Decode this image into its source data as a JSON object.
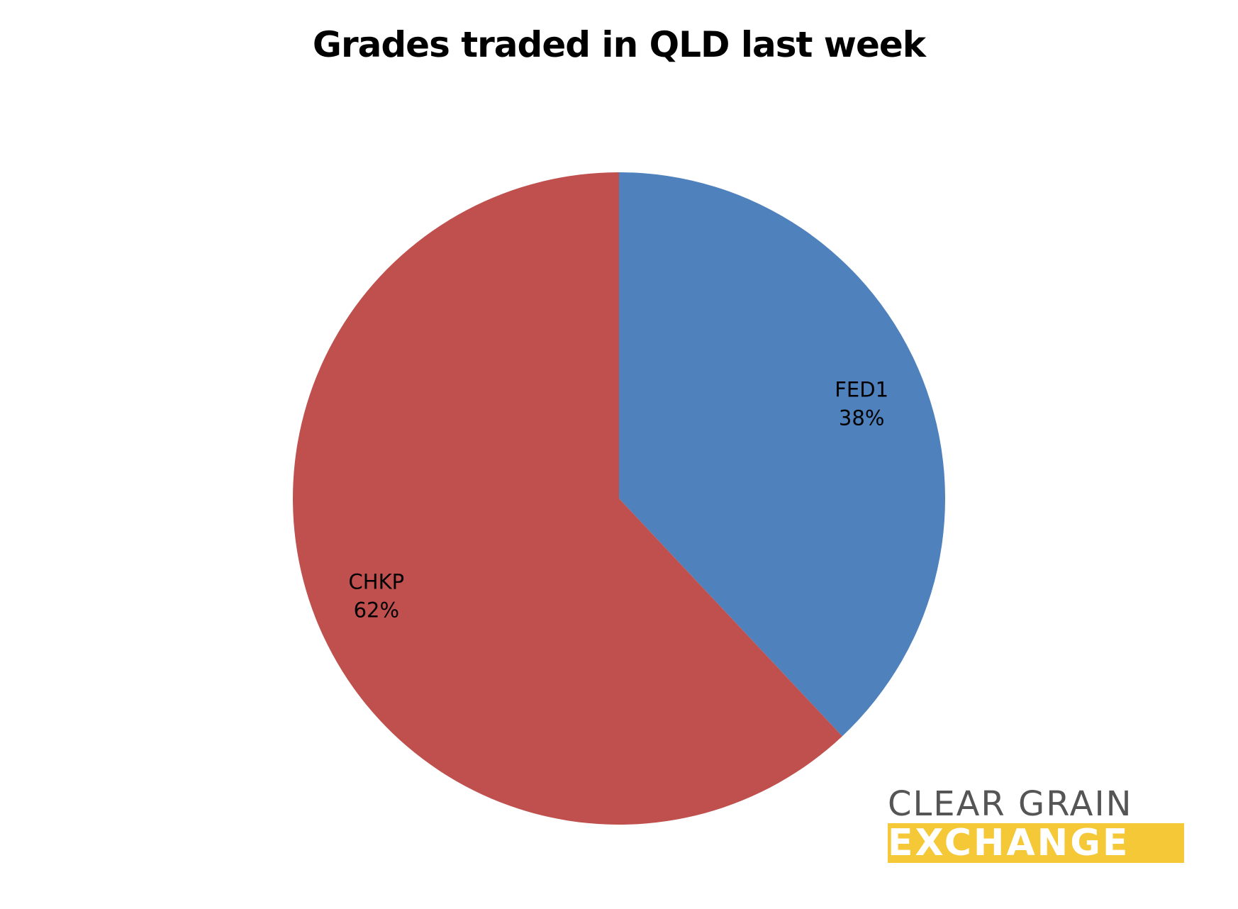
{
  "chart_data": {
    "type": "pie",
    "title": "Grades traded in QLD last week",
    "slices": [
      {
        "label": "FED1",
        "percent_label": "38%",
        "value": 38,
        "color": "#4f81bd"
      },
      {
        "label": "CHKP",
        "percent_label": "62%",
        "value": 62,
        "color": "#c0504d"
      }
    ],
    "start_angle": "12 o'clock",
    "direction": "clockwise",
    "legend": "none"
  },
  "logo": {
    "line1": "CLEAR GRAIN",
    "line2": "EXCHANGE",
    "band_color": "#f5c838"
  }
}
